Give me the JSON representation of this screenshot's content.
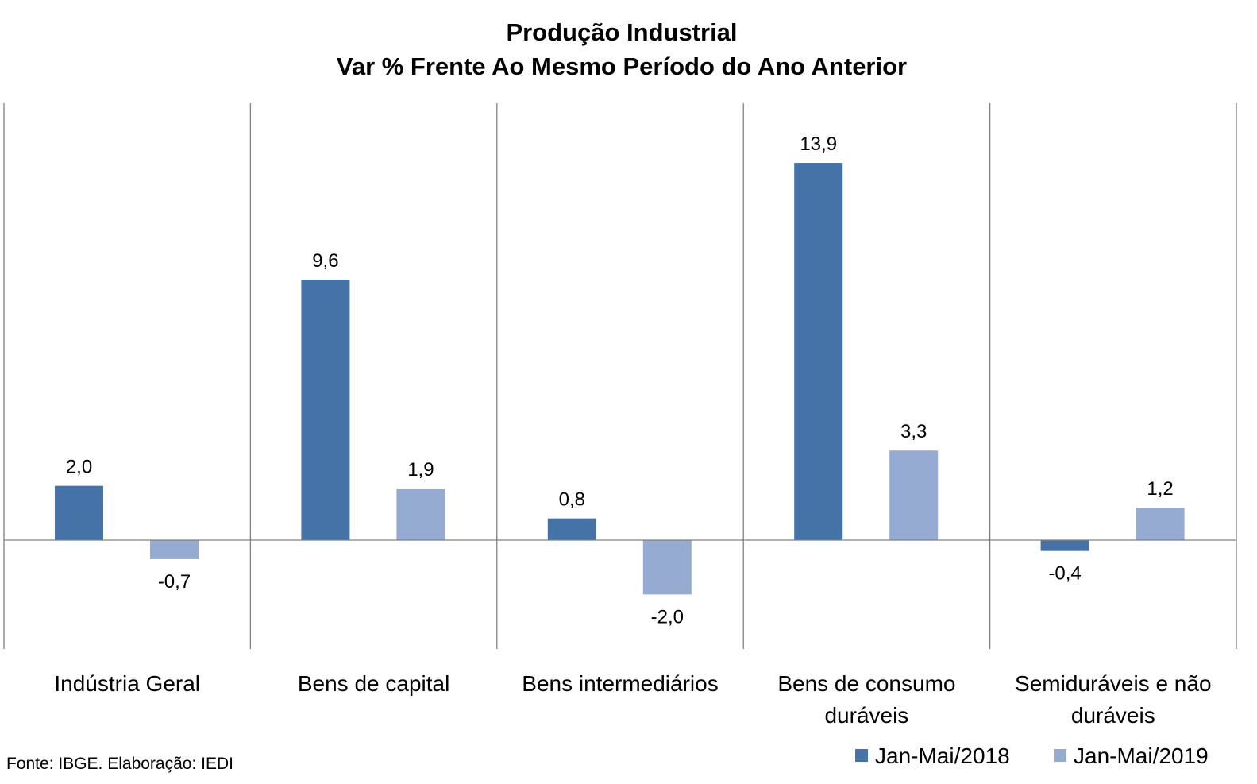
{
  "chart_data": {
    "type": "bar",
    "title": "Produção Industrial",
    "subtitle": "Var % Frente Ao Mesmo Período do Ano Anterior",
    "categories": [
      [
        "Indústria Geral"
      ],
      [
        "Bens de capital"
      ],
      [
        "Bens intermediários"
      ],
      [
        "Bens de consumo",
        "duráveis"
      ],
      [
        "Semiduráveis e não",
        "duráveis"
      ]
    ],
    "series": [
      {
        "name": "Jan-Mai/2018",
        "color": "#4573A7",
        "values": [
          2.0,
          9.6,
          0.8,
          13.9,
          -0.4
        ],
        "labels": [
          "2,0",
          "9,6",
          "0,8",
          "13,9",
          "-0,4"
        ]
      },
      {
        "name": "Jan-Mai/2019",
        "color": "#95ABD2",
        "values": [
          -0.7,
          1.9,
          -2.0,
          3.3,
          1.2
        ],
        "labels": [
          "-0,7",
          "1,9",
          "-2,0",
          "3,3",
          "1,2"
        ]
      }
    ],
    "ylim": [
      -4,
      16
    ],
    "grid": false,
    "legend_position": "bottom-right",
    "source": "Fonte: IBGE. Elaboração: IEDI"
  }
}
